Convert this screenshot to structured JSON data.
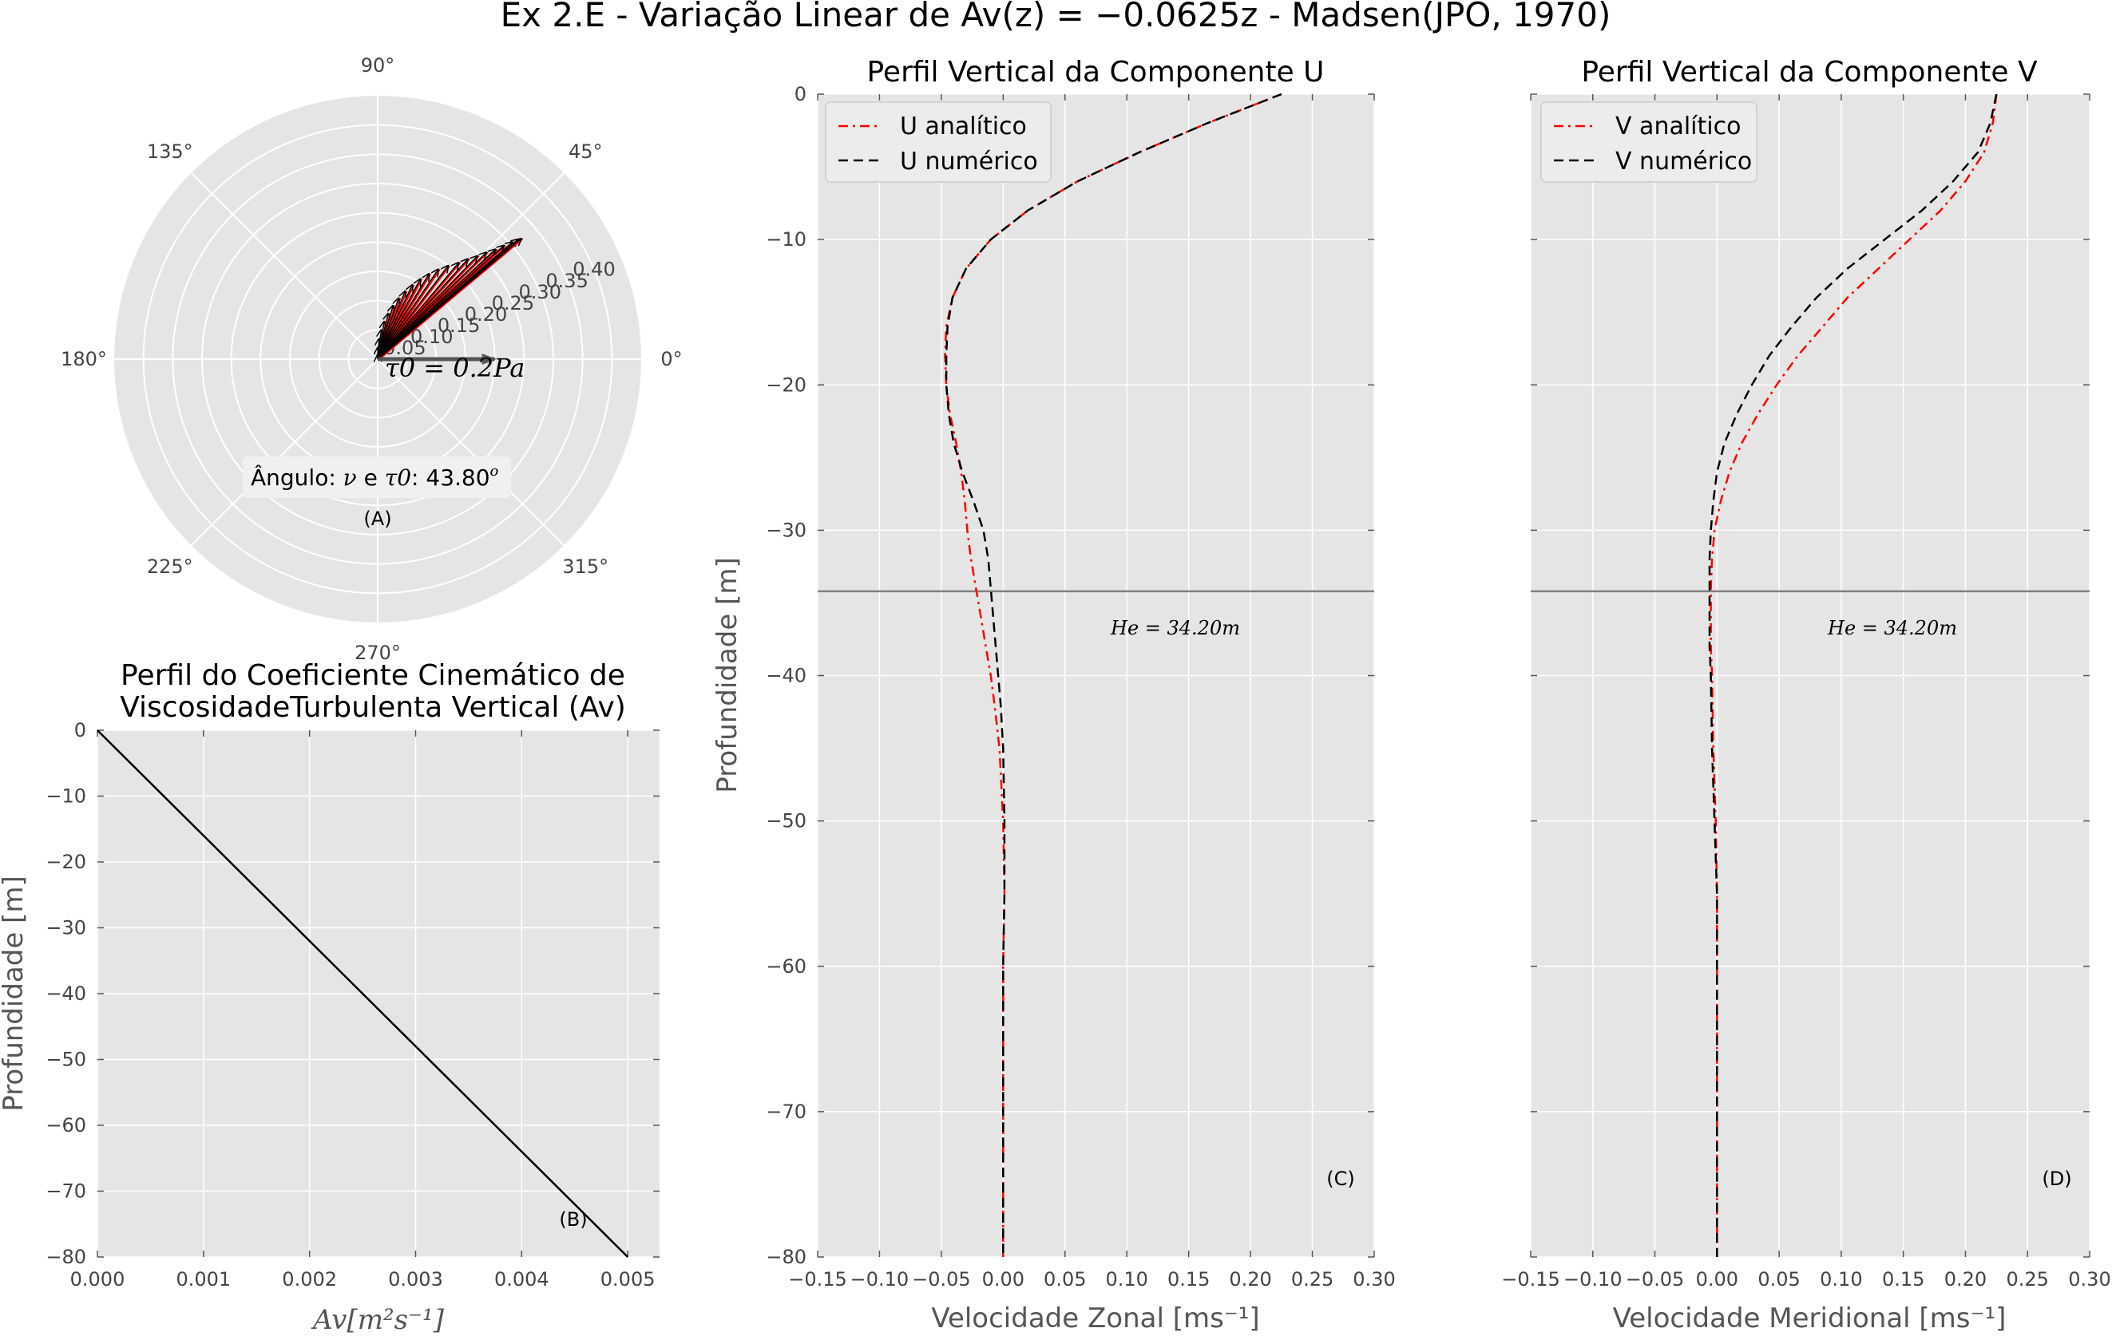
{
  "figure_title": "Ex 2.E - Variação Linear de Av(z) = −0.0625z - Madsen(JPO, 1970)",
  "colors": {
    "panel_bg": "#e5e5e5",
    "grid": "#ffffff",
    "analytic": "#ff0000",
    "numeric": "#000000",
    "line": "#000000",
    "he_line": "#808080",
    "wind_arrow": "#555555"
  },
  "chart_data": [
    {
      "id": "A",
      "type": "polar",
      "panel_label": "(A)",
      "angle_ticks": [
        "0°",
        "45°",
        "90°",
        "135°",
        "180°",
        "225°",
        "270°",
        "315°"
      ],
      "radial_ticks": [
        "0.05",
        "0.10",
        "0.15",
        "0.20",
        "0.25",
        "0.30",
        "0.35",
        "0.40"
      ],
      "rlim": [
        0,
        0.45
      ],
      "vectors": {
        "magnitudes": [
          0.007,
          0.02,
          0.035,
          0.05,
          0.065,
          0.08,
          0.095,
          0.11,
          0.125,
          0.14,
          0.155,
          0.17,
          0.185,
          0.2,
          0.215,
          0.23,
          0.245,
          0.26,
          0.275,
          0.29,
          0.305,
          0.315,
          0.32
        ],
        "angles_deg": [
          92,
          89,
          86,
          83,
          80,
          77,
          74,
          71,
          68,
          65,
          62,
          59,
          56,
          53,
          50,
          48,
          46,
          44.5,
          43,
          42,
          41,
          40.5,
          40
        ]
      },
      "wind_stress": {
        "magnitude": 0.2,
        "angle_deg": 0,
        "label": "τ0 = 0.2Pa"
      },
      "angle_annotation": {
        "prefix": "Ângulo: ",
        "nu": "ν",
        "e": " e ",
        "tau": "τ0",
        "value_text": ": 43.80",
        "degree": "o"
      }
    },
    {
      "id": "B",
      "type": "line",
      "panel_label": "(B)",
      "title_line1": "Perfil do Coeficiente Cinemático de",
      "title_line2": "ViscosidadeTurbulenta Vertical (Av)",
      "xlabel": "Av[m²s⁻¹]",
      "ylabel": "Profundidade [m]",
      "xlim": [
        0,
        0.0053
      ],
      "ylim": [
        -80,
        0
      ],
      "xticks": [
        0.0,
        0.001,
        0.002,
        0.003,
        0.004,
        0.005
      ],
      "xtick_labels": [
        "0.000",
        "0.001",
        "0.002",
        "0.003",
        "0.004",
        "0.005"
      ],
      "yticks": [
        0,
        -10,
        -20,
        -30,
        -40,
        -50,
        -60,
        -70,
        -80
      ],
      "ytick_labels": [
        "0",
        "−10",
        "−20",
        "−30",
        "−40",
        "−50",
        "−60",
        "−70",
        "−80"
      ],
      "x": [
        0.0,
        0.005
      ],
      "y": [
        0,
        -80
      ]
    },
    {
      "id": "C",
      "type": "line",
      "panel_label": "(C)",
      "title": "Perfil Vertical da Componente U",
      "xlabel": "Velocidade Zonal [ms⁻¹]",
      "ylabel": "Profundidade [m]",
      "xlim": [
        -0.15,
        0.3
      ],
      "ylim": [
        -80,
        0
      ],
      "xticks": [
        -0.15,
        -0.1,
        -0.05,
        0.0,
        0.05,
        0.1,
        0.15,
        0.2,
        0.25,
        0.3
      ],
      "xtick_labels": [
        "−0.15",
        "−0.10",
        "−0.05",
        "0.00",
        "0.05",
        "0.10",
        "0.15",
        "0.20",
        "0.25",
        "0.30"
      ],
      "yticks": [
        0,
        -10,
        -20,
        -30,
        -40,
        -50,
        -60,
        -70,
        -80
      ],
      "ytick_labels": [
        "0",
        "−10",
        "−20",
        "−30",
        "−40",
        "−50",
        "−60",
        "−70",
        "−80"
      ],
      "hline": {
        "y": -34.2,
        "label": "He = 34.20m"
      },
      "legend_loc": "upper-left",
      "series": [
        {
          "name": "U analítico",
          "style": "dashdot",
          "y": [
            0,
            -2,
            -4,
            -6,
            -8,
            -10,
            -12,
            -14,
            -16,
            -18,
            -20,
            -22,
            -24,
            -26,
            -28,
            -30,
            -32,
            -34,
            -36,
            -38,
            -40,
            -42,
            -45,
            -50,
            -55,
            -60,
            -65,
            -70,
            -75,
            -80
          ],
          "x": [
            0.225,
            0.165,
            0.11,
            0.06,
            0.02,
            -0.01,
            -0.03,
            -0.041,
            -0.046,
            -0.047,
            -0.046,
            -0.043,
            -0.038,
            -0.034,
            -0.031,
            -0.029,
            -0.026,
            -0.022,
            -0.018,
            -0.014,
            -0.01,
            -0.007,
            -0.003,
            0.0,
            0.001,
            0.0,
            0.0,
            0.0,
            0.0,
            0.0
          ]
        },
        {
          "name": "U numérico",
          "style": "dashed",
          "y": [
            0,
            -2,
            -4,
            -6,
            -8,
            -10,
            -12,
            -14,
            -16,
            -18,
            -20,
            -22,
            -24,
            -26,
            -28,
            -30,
            -32,
            -34,
            -36,
            -38,
            -40,
            -42,
            -45,
            -50,
            -55,
            -60,
            -65,
            -70,
            -75,
            -80
          ],
          "x": [
            0.225,
            0.165,
            0.11,
            0.06,
            0.02,
            -0.01,
            -0.03,
            -0.041,
            -0.045,
            -0.046,
            -0.046,
            -0.044,
            -0.04,
            -0.033,
            -0.024,
            -0.016,
            -0.012,
            -0.01,
            -0.008,
            -0.006,
            -0.004,
            -0.002,
            0.0,
            0.001,
            0.001,
            0.0,
            0.0,
            0.0,
            0.0,
            0.0
          ]
        }
      ]
    },
    {
      "id": "D",
      "type": "line",
      "panel_label": "(D)",
      "title": "Perfil Vertical da Componente V",
      "xlabel": "Velocidade Meridional [ms⁻¹]",
      "xlim": [
        -0.15,
        0.3
      ],
      "ylim": [
        -80,
        0
      ],
      "xticks": [
        -0.15,
        -0.1,
        -0.05,
        0.0,
        0.05,
        0.1,
        0.15,
        0.2,
        0.25,
        0.3
      ],
      "xtick_labels": [
        "−0.15",
        "−0.10",
        "−0.05",
        "0.00",
        "0.05",
        "0.10",
        "0.15",
        "0.20",
        "0.25",
        "0.30"
      ],
      "yticks": [
        0,
        -10,
        -20,
        -30,
        -40,
        -50,
        -60,
        -70,
        -80
      ],
      "hline": {
        "y": -34.2,
        "label": "He = 34.20m"
      },
      "legend_loc": "upper-left",
      "series": [
        {
          "name": "V analítico",
          "style": "dashdot",
          "y": [
            0,
            -2,
            -4,
            -6,
            -8,
            -10,
            -12,
            -14,
            -16,
            -18,
            -20,
            -22,
            -24,
            -26,
            -28,
            -30,
            -32,
            -34,
            -36,
            -38,
            -40,
            -45,
            -50,
            -55,
            -60,
            -65,
            -70,
            -75,
            -80
          ],
          "x": [
            0.225,
            0.222,
            0.215,
            0.2,
            0.18,
            0.155,
            0.13,
            0.105,
            0.085,
            0.065,
            0.048,
            0.033,
            0.02,
            0.01,
            0.003,
            -0.002,
            -0.004,
            -0.005,
            -0.005,
            -0.005,
            -0.004,
            -0.003,
            -0.001,
            0.0,
            0.0,
            0.0,
            0.0,
            0.0,
            0.0
          ]
        },
        {
          "name": "V numérico",
          "style": "dashed",
          "y": [
            0,
            -2,
            -4,
            -6,
            -8,
            -10,
            -12,
            -14,
            -16,
            -18,
            -20,
            -22,
            -24,
            -26,
            -28,
            -30,
            -32,
            -34,
            -36,
            -38,
            -40,
            -45,
            -50,
            -55,
            -60,
            -65,
            -70,
            -75,
            -80
          ],
          "x": [
            0.225,
            0.22,
            0.21,
            0.19,
            0.165,
            0.135,
            0.105,
            0.08,
            0.06,
            0.042,
            0.028,
            0.016,
            0.006,
            0.0,
            -0.003,
            -0.005,
            -0.006,
            -0.006,
            -0.006,
            -0.006,
            -0.005,
            -0.004,
            -0.002,
            0.0,
            0.0,
            0.0,
            0.0,
            0.0,
            0.0
          ]
        }
      ]
    }
  ]
}
